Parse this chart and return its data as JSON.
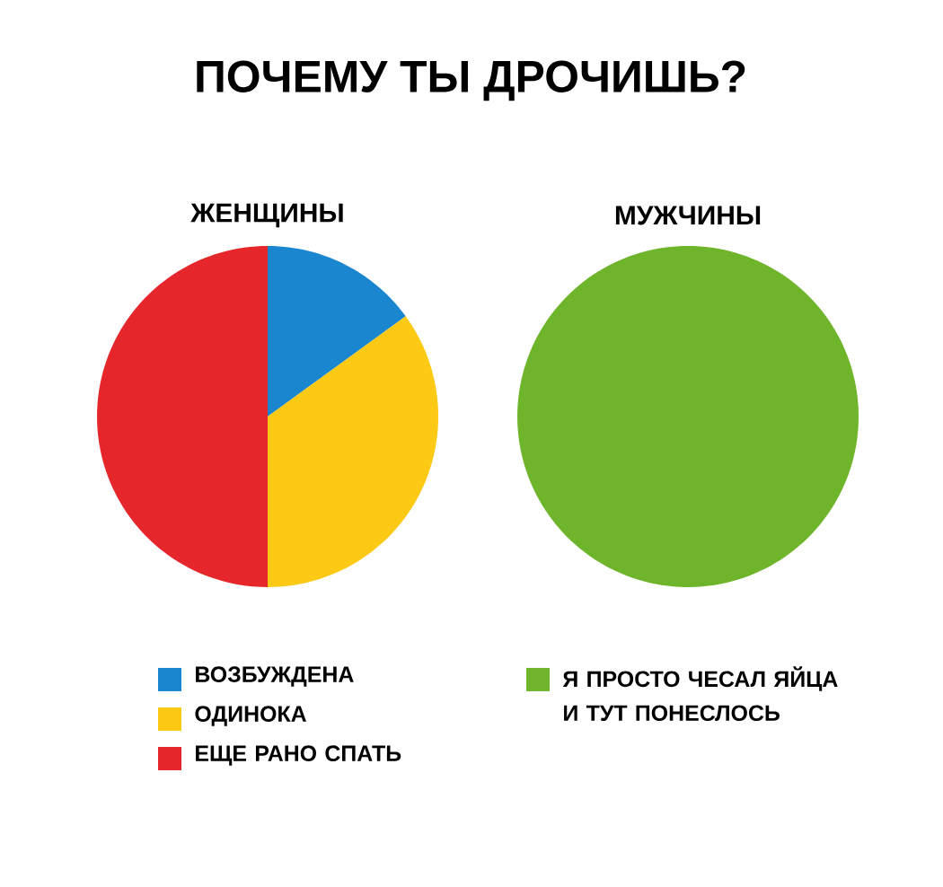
{
  "chart_data": [
    {
      "type": "pie",
      "title": "ПОЧЕМУ ТЫ ДРОЧИШЬ?",
      "subtitle": "ЖЕНЩИНЫ",
      "categories": [
        "ВОЗБУЖДЕНА",
        "ОДИНОКА",
        "ЕЩЕ РАНО СПАТЬ"
      ],
      "values": [
        15,
        35,
        50
      ],
      "colors": [
        "#1a86d0",
        "#fcc914",
        "#e5262a"
      ],
      "legend": "bottom"
    },
    {
      "type": "pie",
      "subtitle": "МУЖЧИНЫ",
      "categories": [
        "Я ПРОСТО ЧЕСАЛ ЯЙЦА И ТУТ ПОНЕСЛОСЬ"
      ],
      "values": [
        100
      ],
      "colors": [
        "#6fb52c"
      ],
      "legend": "bottom"
    }
  ]
}
